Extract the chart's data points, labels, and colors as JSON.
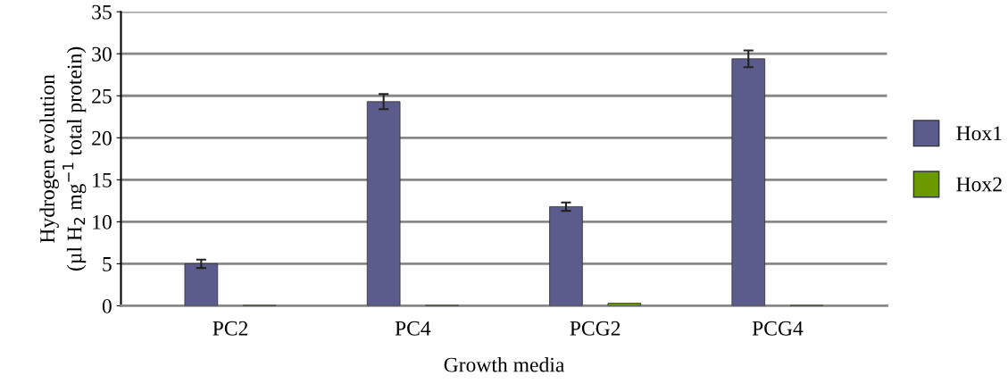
{
  "chart_data": {
    "type": "bar",
    "xlabel": "Growth media",
    "ylabel": "Hydrogen evolution\n(µl H$_{2}$ mg$^{−1}$ total protein)",
    "categories": [
      "PC2",
      "PC4",
      "PCG2",
      "PCG4"
    ],
    "series": [
      {
        "name": "Hox1",
        "color": "#5b5b8c",
        "values": [
          5.0,
          24.3,
          11.8,
          29.4
        ],
        "errors": [
          0.5,
          0.9,
          0.5,
          1.0
        ]
      },
      {
        "name": "Hox2",
        "color": "#6a9a00",
        "values": [
          0.05,
          0.05,
          0.3,
          0.05
        ]
      }
    ],
    "ylim": [
      0,
      35
    ],
    "yticks": [
      0,
      5,
      10,
      15,
      20,
      25,
      30,
      35
    ],
    "grid": "y",
    "legend": "right"
  }
}
